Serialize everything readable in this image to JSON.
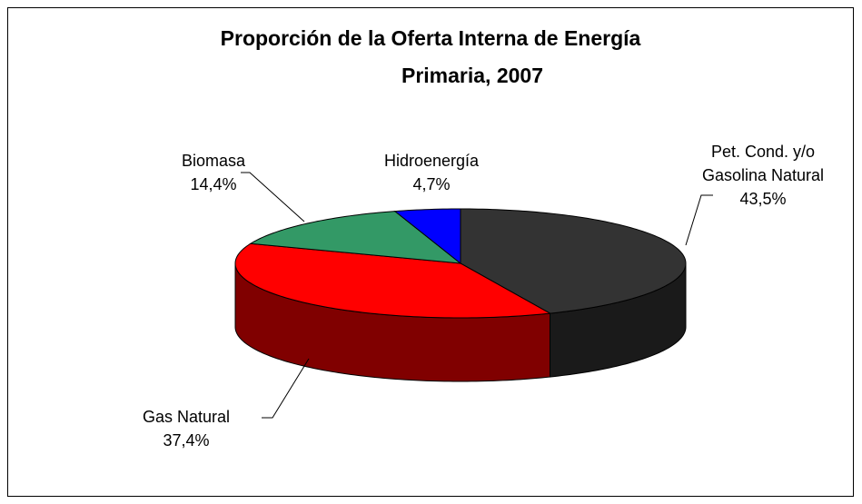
{
  "chart_data": {
    "type": "pie",
    "title": [
      "Proporción de la Oferta Interna de Energía",
      "Primaria, 2007"
    ],
    "categories": [
      "Pet. Cond. y/o Gasolina Natural",
      "Gas Natural",
      "Biomasa",
      "Hidroenergía"
    ],
    "values": [
      43.5,
      37.4,
      14.4,
      4.7
    ],
    "value_labels": [
      "43,5%",
      "37,4%",
      "14,4%",
      "4,7%"
    ],
    "colors": [
      "#333333",
      "#ff0000",
      "#339966",
      "#0000ff"
    ]
  }
}
